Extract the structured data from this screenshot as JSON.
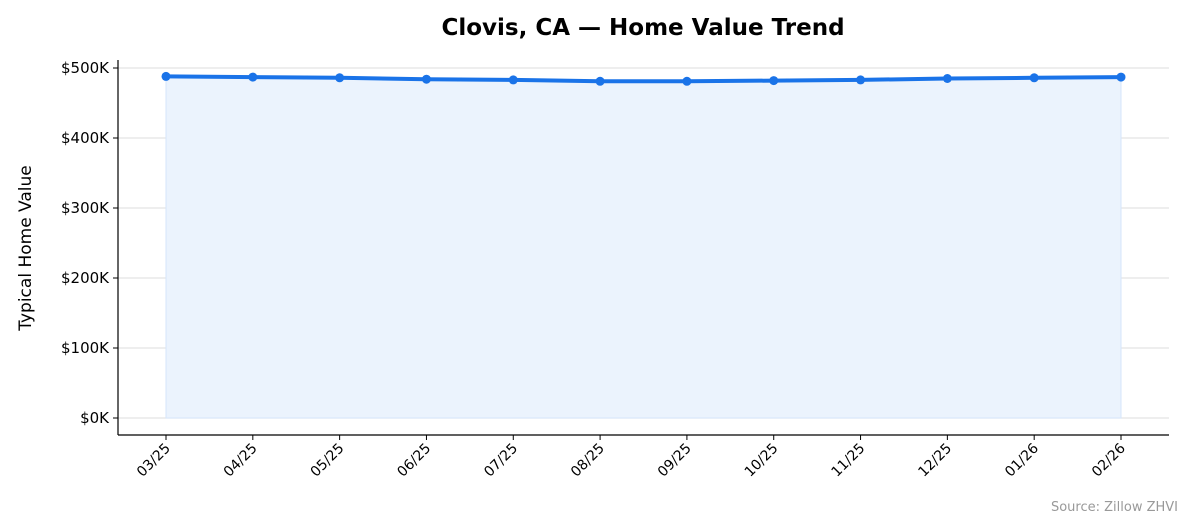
{
  "chart_data": {
    "type": "line",
    "title": "Clovis, CA — Home Value Trend",
    "xlabel": "",
    "ylabel": "Typical Home Value",
    "categories": [
      "03/25",
      "04/25",
      "05/25",
      "06/25",
      "07/25",
      "08/25",
      "09/25",
      "10/25",
      "11/25",
      "12/25",
      "01/26",
      "02/26"
    ],
    "values": [
      488000,
      487000,
      486000,
      484000,
      483000,
      481000,
      481000,
      482000,
      483000,
      485000,
      486000,
      487000
    ],
    "yticks": [
      0,
      100000,
      200000,
      300000,
      400000,
      500000
    ],
    "ytick_labels": [
      "$0K",
      "$100K",
      "$200K",
      "$300K",
      "$400K",
      "$500K"
    ],
    "ylim": [
      -25000,
      515000
    ],
    "grid": "horizontal",
    "area_fill": true,
    "line_color": "#1a73e8",
    "fill_color": "#ebf3fd",
    "source_note": "Source: Zillow ZHVI"
  }
}
